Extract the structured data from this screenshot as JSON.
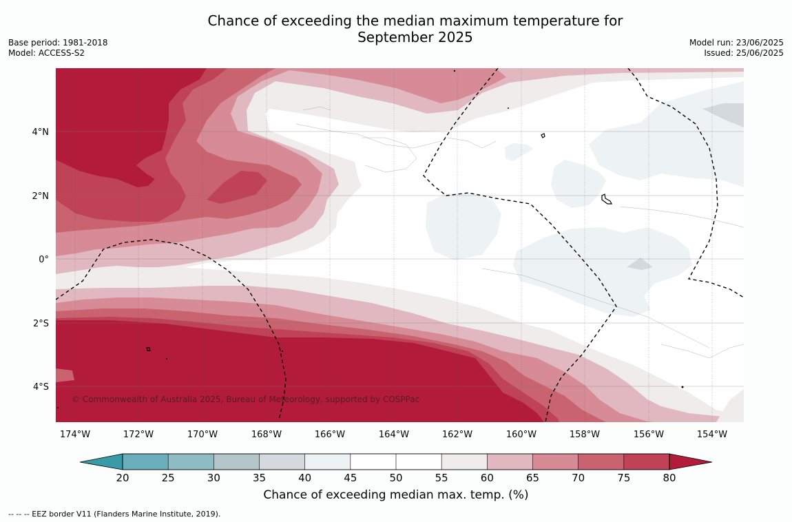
{
  "title": {
    "line1": "Chance of exceeding the median maximum temperature for",
    "line2": "September 2025"
  },
  "meta_left": {
    "base_period": "Base period: 1981-2018",
    "model": "Model: ACCESS-S2"
  },
  "meta_right": {
    "model_run": "Model run: 23/06/2025",
    "issued": "Issued: 25/06/2025"
  },
  "copyright": "© Commonwealth of Australia 2025, Bureau of Meteorology, supported by COSPPac",
  "map": {
    "lon_labels": [
      "174°W",
      "172°W",
      "170°W",
      "168°W",
      "166°W",
      "164°W",
      "162°W",
      "160°W",
      "158°W",
      "156°W",
      "154°W"
    ],
    "lat_labels": [
      "4°N",
      "2°N",
      "0°",
      "2°S",
      "4°S"
    ]
  },
  "colorbar": {
    "ticks": [
      "20",
      "25",
      "30",
      "35",
      "40",
      "45",
      "50",
      "55",
      "60",
      "65",
      "70",
      "75",
      "80"
    ],
    "colors": [
      "#3b9aa8",
      "#6aaebb",
      "#8fbcc4",
      "#b2c6ca",
      "#d3d9dc",
      "#edf2f4",
      "#ffffff",
      "#ffffff",
      "#efeceb",
      "#e1b8bf",
      "#d68b96",
      "#c96370",
      "#bf4256",
      "#b21c3a"
    ],
    "label": "Chance of exceeding median max. temp. (%)"
  },
  "footnote": "--  --  -- EEZ border V11 (Flanders Marine Institute, 2019)."
}
